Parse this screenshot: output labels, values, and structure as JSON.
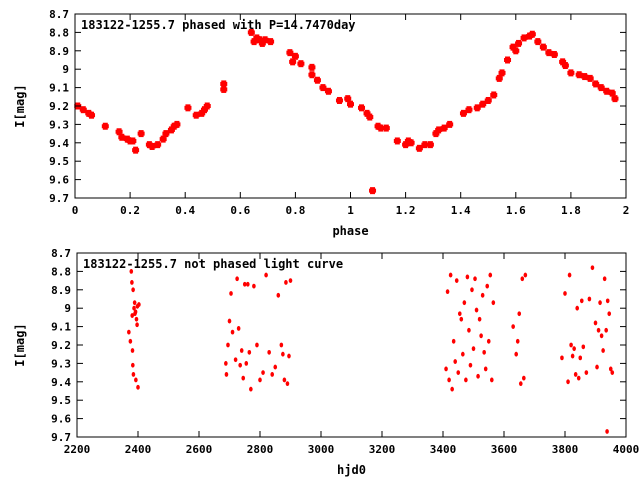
{
  "chart_data": [
    {
      "type": "scatter",
      "title": "183122-1255.7 phased with P=14.7470day",
      "xlabel": "phase",
      "ylabel": "I[mag]",
      "xlim": [
        0,
        2
      ],
      "ylim": [
        8.7,
        9.7
      ],
      "y_inverted": true,
      "marker": "cross",
      "color": "#ff0000",
      "xticks": [
        "0",
        "0.2",
        "0.4",
        "0.6",
        "0.8",
        "1",
        "1.2",
        "1.4",
        "1.6",
        "1.8",
        "2"
      ],
      "yticks": [
        "8.7",
        "8.8",
        "8.9",
        "9",
        "9.1",
        "9.2",
        "9.3",
        "9.4",
        "9.5",
        "9.6",
        "9.7"
      ],
      "points": [
        [
          0.01,
          9.2
        ],
        [
          0.03,
          9.22
        ],
        [
          0.05,
          9.24
        ],
        [
          0.06,
          9.25
        ],
        [
          0.11,
          9.31
        ],
        [
          0.16,
          9.34
        ],
        [
          0.17,
          9.37
        ],
        [
          0.19,
          9.38
        ],
        [
          0.2,
          9.39
        ],
        [
          0.21,
          9.39
        ],
        [
          0.22,
          9.44
        ],
        [
          0.24,
          9.35
        ],
        [
          0.27,
          9.41
        ],
        [
          0.28,
          9.42
        ],
        [
          0.3,
          9.41
        ],
        [
          0.32,
          9.38
        ],
        [
          0.33,
          9.35
        ],
        [
          0.35,
          9.33
        ],
        [
          0.36,
          9.31
        ],
        [
          0.37,
          9.3
        ],
        [
          0.41,
          9.21
        ],
        [
          0.44,
          9.25
        ],
        [
          0.46,
          9.24
        ],
        [
          0.47,
          9.22
        ],
        [
          0.48,
          9.2
        ],
        [
          0.54,
          9.08
        ],
        [
          0.54,
          9.11
        ],
        [
          0.64,
          8.8
        ],
        [
          0.65,
          8.85
        ],
        [
          0.66,
          8.83
        ],
        [
          0.67,
          8.84
        ],
        [
          0.68,
          8.86
        ],
        [
          0.69,
          8.84
        ],
        [
          0.71,
          8.85
        ],
        [
          0.78,
          8.91
        ],
        [
          0.79,
          8.96
        ],
        [
          0.8,
          8.93
        ],
        [
          0.82,
          8.97
        ],
        [
          0.86,
          8.99
        ],
        [
          0.86,
          9.03
        ],
        [
          0.88,
          9.06
        ],
        [
          0.9,
          9.1
        ],
        [
          0.92,
          9.12
        ],
        [
          0.96,
          9.17
        ],
        [
          0.99,
          9.16
        ],
        [
          1.0,
          9.19
        ],
        [
          1.04,
          9.21
        ],
        [
          1.06,
          9.24
        ],
        [
          1.07,
          9.26
        ],
        [
          1.08,
          9.66
        ],
        [
          1.1,
          9.31
        ],
        [
          1.11,
          9.32
        ],
        [
          1.13,
          9.32
        ],
        [
          1.17,
          9.39
        ],
        [
          1.2,
          9.41
        ],
        [
          1.21,
          9.39
        ],
        [
          1.22,
          9.4
        ],
        [
          1.25,
          9.43
        ],
        [
          1.27,
          9.41
        ],
        [
          1.29,
          9.41
        ],
        [
          1.31,
          9.35
        ],
        [
          1.32,
          9.33
        ],
        [
          1.34,
          9.32
        ],
        [
          1.36,
          9.3
        ],
        [
          1.41,
          9.24
        ],
        [
          1.43,
          9.22
        ],
        [
          1.46,
          9.21
        ],
        [
          1.48,
          9.19
        ],
        [
          1.5,
          9.17
        ],
        [
          1.52,
          9.14
        ],
        [
          1.54,
          9.05
        ],
        [
          1.55,
          9.02
        ],
        [
          1.57,
          8.95
        ],
        [
          1.59,
          8.88
        ],
        [
          1.6,
          8.9
        ],
        [
          1.61,
          8.86
        ],
        [
          1.63,
          8.83
        ],
        [
          1.65,
          8.82
        ],
        [
          1.66,
          8.81
        ],
        [
          1.68,
          8.85
        ],
        [
          1.7,
          8.88
        ],
        [
          1.72,
          8.91
        ],
        [
          1.74,
          8.92
        ],
        [
          1.77,
          8.96
        ],
        [
          1.78,
          8.98
        ],
        [
          1.8,
          9.02
        ],
        [
          1.83,
          9.03
        ],
        [
          1.85,
          9.04
        ],
        [
          1.87,
          9.05
        ],
        [
          1.89,
          9.08
        ],
        [
          1.91,
          9.1
        ],
        [
          1.93,
          9.12
        ],
        [
          1.95,
          9.13
        ],
        [
          1.96,
          9.16
        ]
      ]
    },
    {
      "type": "scatter",
      "title": "183122-1255.7 not phased light curve",
      "xlabel": "hjd0",
      "ylabel": "I[mag]",
      "xlim": [
        2200,
        4000
      ],
      "ylim": [
        8.7,
        9.7
      ],
      "y_inverted": true,
      "marker": "dot",
      "color": "#ff0000",
      "xticks": [
        "2200",
        "2400",
        "2600",
        "2800",
        "3000",
        "3200",
        "3400",
        "3600",
        "3800",
        "4000"
      ],
      "yticks": [
        "8.7",
        "8.8",
        "8.9",
        "9",
        "9.1",
        "9.2",
        "9.3",
        "9.4",
        "9.5",
        "9.6",
        "9.7"
      ],
      "points": [
        [
          2370,
          9.13
        ],
        [
          2375,
          9.18
        ],
        [
          2378,
          8.8
        ],
        [
          2380,
          8.86
        ],
        [
          2381,
          9.04
        ],
        [
          2382,
          9.23
        ],
        [
          2383,
          9.31
        ],
        [
          2384,
          8.9
        ],
        [
          2385,
          9.36
        ],
        [
          2387,
          9.0
        ],
        [
          2389,
          8.97
        ],
        [
          2390,
          9.03
        ],
        [
          2392,
          9.02
        ],
        [
          2393,
          9.39
        ],
        [
          2395,
          9.06
        ],
        [
          2397,
          9.09
        ],
        [
          2398,
          8.99
        ],
        [
          2400,
          9.43
        ],
        [
          2403,
          8.98
        ],
        [
          2688,
          9.3
        ],
        [
          2690,
          9.36
        ],
        [
          2695,
          9.2
        ],
        [
          2700,
          9.07
        ],
        [
          2705,
          8.92
        ],
        [
          2710,
          9.13
        ],
        [
          2720,
          9.28
        ],
        [
          2725,
          8.84
        ],
        [
          2730,
          9.11
        ],
        [
          2735,
          9.31
        ],
        [
          2740,
          9.23
        ],
        [
          2745,
          9.38
        ],
        [
          2750,
          8.87
        ],
        [
          2755,
          9.3
        ],
        [
          2760,
          8.87
        ],
        [
          2765,
          9.24
        ],
        [
          2770,
          9.44
        ],
        [
          2780,
          8.88
        ],
        [
          2790,
          9.2
        ],
        [
          2800,
          9.39
        ],
        [
          2810,
          9.35
        ],
        [
          2820,
          8.82
        ],
        [
          2830,
          9.24
        ],
        [
          2840,
          9.36
        ],
        [
          2850,
          9.32
        ],
        [
          2860,
          8.93
        ],
        [
          2870,
          9.2
        ],
        [
          2875,
          9.25
        ],
        [
          2880,
          9.39
        ],
        [
          2885,
          8.86
        ],
        [
          2890,
          9.41
        ],
        [
          2895,
          9.26
        ],
        [
          2900,
          8.85
        ],
        [
          3410,
          9.33
        ],
        [
          3415,
          8.91
        ],
        [
          3420,
          9.39
        ],
        [
          3425,
          8.82
        ],
        [
          3430,
          9.44
        ],
        [
          3435,
          9.18
        ],
        [
          3440,
          9.29
        ],
        [
          3445,
          8.85
        ],
        [
          3450,
          9.35
        ],
        [
          3455,
          9.03
        ],
        [
          3460,
          9.06
        ],
        [
          3465,
          9.25
        ],
        [
          3470,
          8.97
        ],
        [
          3475,
          9.39
        ],
        [
          3480,
          8.83
        ],
        [
          3485,
          9.12
        ],
        [
          3490,
          9.31
        ],
        [
          3495,
          8.9
        ],
        [
          3500,
          9.22
        ],
        [
          3505,
          8.84
        ],
        [
          3510,
          9.01
        ],
        [
          3515,
          9.37
        ],
        [
          3520,
          9.06
        ],
        [
          3525,
          9.15
        ],
        [
          3530,
          8.93
        ],
        [
          3535,
          9.24
        ],
        [
          3540,
          9.33
        ],
        [
          3545,
          8.88
        ],
        [
          3550,
          9.18
        ],
        [
          3555,
          8.82
        ],
        [
          3560,
          9.39
        ],
        [
          3565,
          8.97
        ],
        [
          3630,
          9.1
        ],
        [
          3640,
          9.25
        ],
        [
          3645,
          9.18
        ],
        [
          3650,
          9.03
        ],
        [
          3655,
          9.41
        ],
        [
          3660,
          8.84
        ],
        [
          3665,
          9.38
        ],
        [
          3670,
          8.82
        ],
        [
          3790,
          9.27
        ],
        [
          3800,
          8.92
        ],
        [
          3810,
          9.4
        ],
        [
          3815,
          8.82
        ],
        [
          3820,
          9.2
        ],
        [
          3825,
          9.26
        ],
        [
          3830,
          9.22
        ],
        [
          3835,
          9.36
        ],
        [
          3840,
          9.0
        ],
        [
          3845,
          9.38
        ],
        [
          3850,
          9.27
        ],
        [
          3855,
          8.96
        ],
        [
          3860,
          9.21
        ],
        [
          3870,
          9.35
        ],
        [
          3880,
          8.95
        ],
        [
          3890,
          8.78
        ],
        [
          3900,
          9.08
        ],
        [
          3905,
          9.32
        ],
        [
          3910,
          9.12
        ],
        [
          3915,
          8.97
        ],
        [
          3920,
          9.15
        ],
        [
          3925,
          9.23
        ],
        [
          3930,
          8.84
        ],
        [
          3935,
          9.12
        ],
        [
          3938,
          9.67
        ],
        [
          3940,
          8.96
        ],
        [
          3945,
          9.03
        ],
        [
          3950,
          9.33
        ],
        [
          3955,
          9.35
        ]
      ]
    }
  ]
}
